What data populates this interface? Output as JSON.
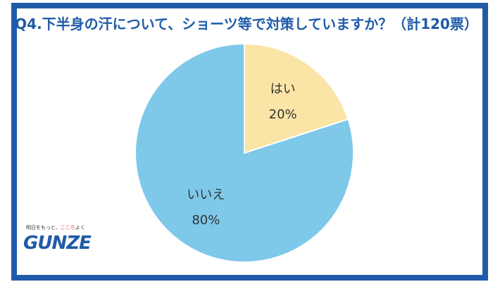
{
  "chart_data": {
    "type": "pie",
    "title": "Q4.下半身の汗について、ショーツ等で対策していますか？（計120票）",
    "slices": [
      {
        "label": "はい",
        "value": 20,
        "value_label": "20%",
        "color": "#fae5a6"
      },
      {
        "label": "いいえ",
        "value": 80,
        "value_label": "80%",
        "color": "#7ec8ea"
      }
    ],
    "legend": "none"
  },
  "brand": {
    "tagline": "明日をもっと、ここちよく",
    "tagline_pre": "明日をもっと、",
    "tagline_heart": "ここち",
    "tagline_post": "よく",
    "name": "GUNZE"
  },
  "colors": {
    "frame": "#1f5ba8",
    "title": "#1f5ba8",
    "background": "#ffffff"
  }
}
